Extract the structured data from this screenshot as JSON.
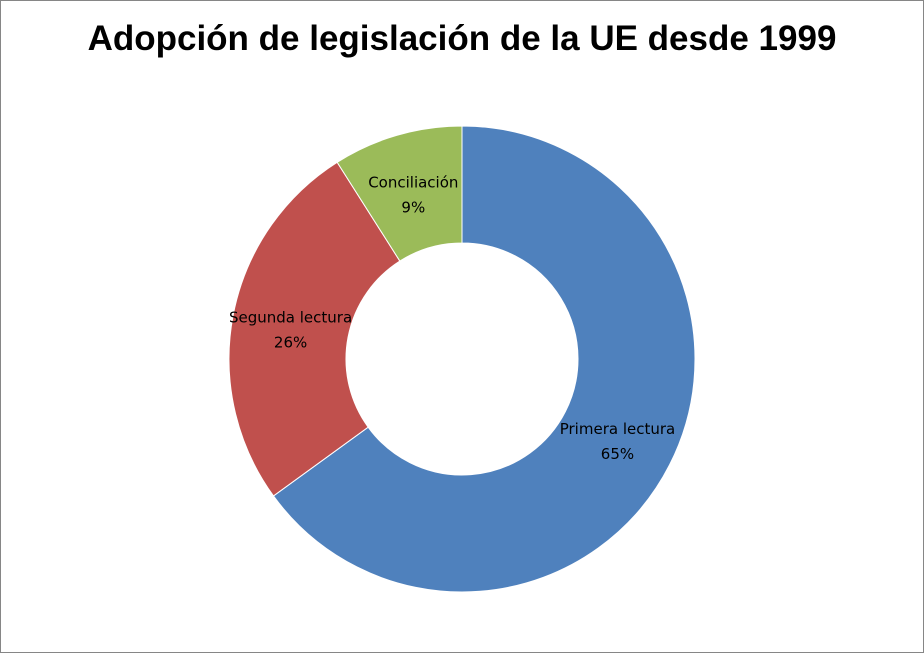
{
  "chart_data": {
    "type": "pie",
    "variant": "doughnut",
    "title": "Adopción de legislación de la UE desde 1999",
    "categories": [
      "Primera lectura",
      "Segunda lectura",
      "Conciliación"
    ],
    "values": [
      65,
      26,
      9
    ],
    "value_labels": [
      "65%",
      "26%",
      "9%"
    ],
    "colors": [
      "#4F81BD",
      "#C0504D",
      "#9BBB59"
    ],
    "legend": "none",
    "data_labels": "category name and percentage"
  }
}
